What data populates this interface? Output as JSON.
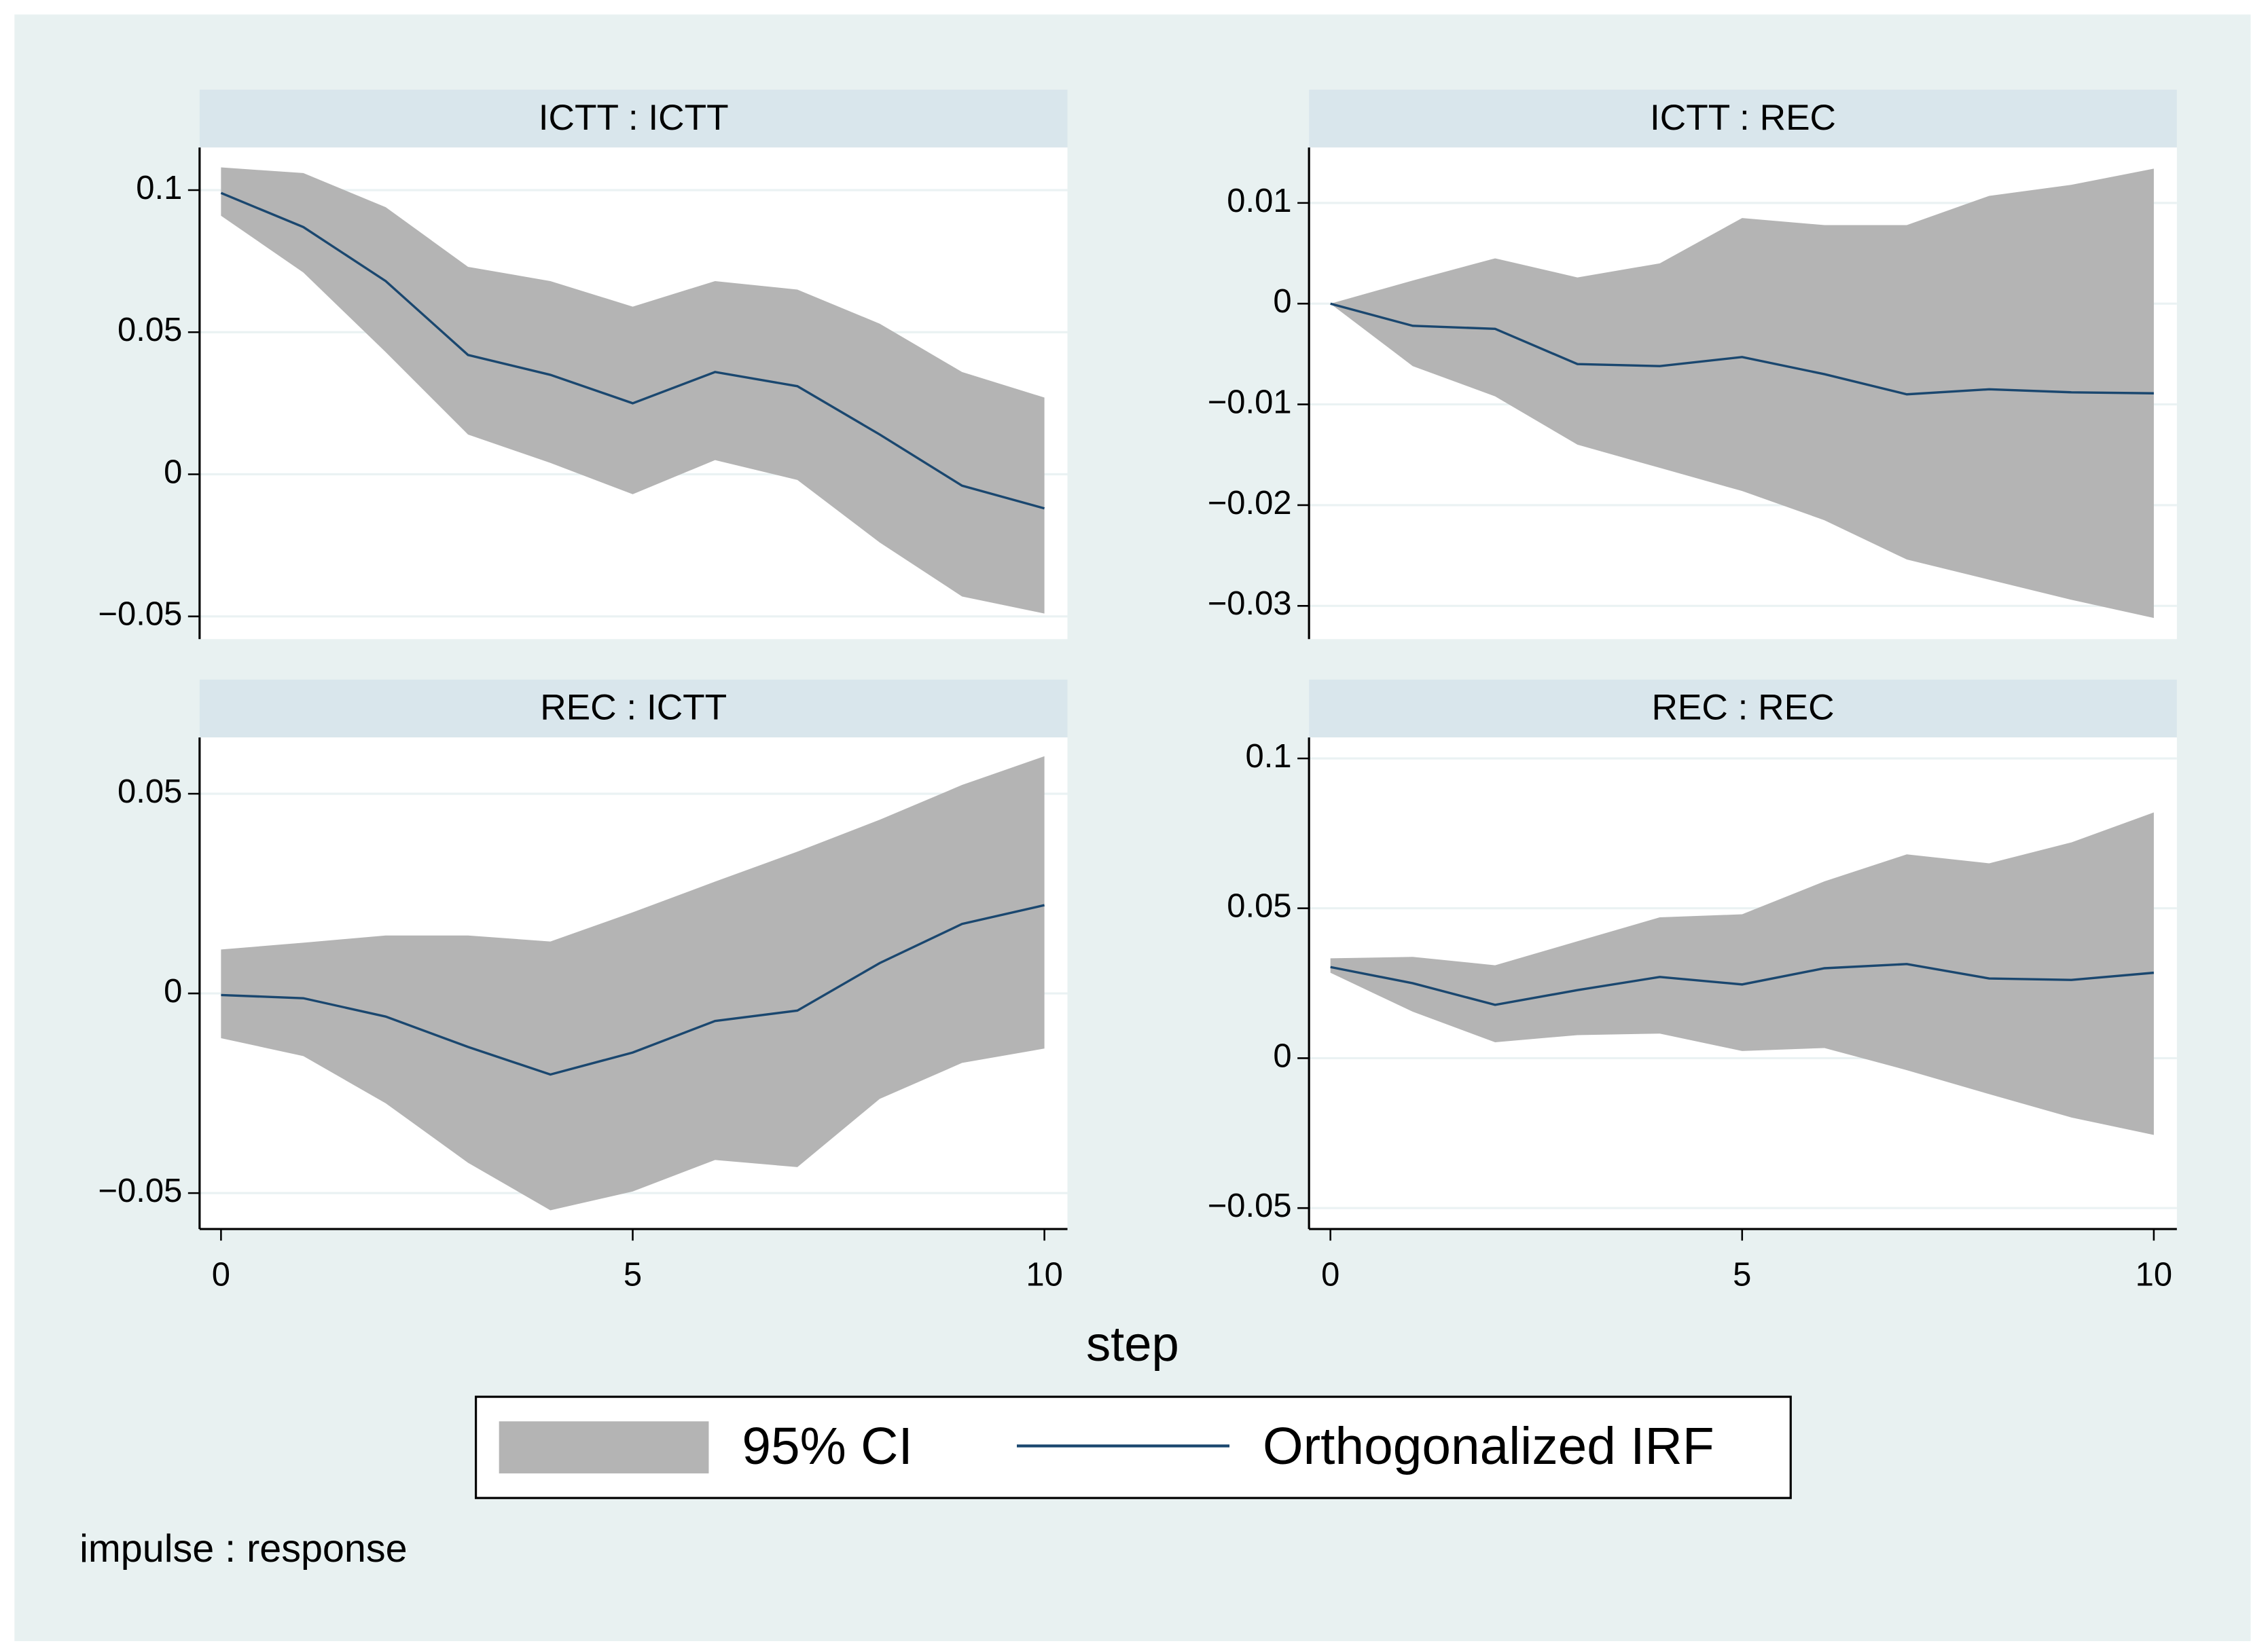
{
  "chart_data": [
    {
      "type": "line",
      "title": "ICTT : ICTT",
      "x": [
        0,
        1,
        2,
        3,
        4,
        5,
        6,
        7,
        8,
        9,
        10
      ],
      "xlim": [
        -0.26,
        10.28
      ],
      "ylim": [
        -0.058,
        0.115
      ],
      "yticks": [
        {
          "value": -0.05,
          "label": "−0.05"
        },
        0,
        0.05,
        0.1
      ],
      "grid": true,
      "series": [
        {
          "name": "95% CI",
          "type": "band",
          "color": "#b4b4b4",
          "lower": [
            0.091,
            0.071,
            0.043,
            0.014,
            0.004,
            -0.007,
            0.005,
            -0.002,
            -0.024,
            -0.043,
            -0.049
          ],
          "upper": [
            0.108,
            0.106,
            0.094,
            0.073,
            0.068,
            0.059,
            0.068,
            0.065,
            0.053,
            0.036,
            0.027
          ]
        },
        {
          "name": "Orthogonalized IRF",
          "color": "#1a476f",
          "values": [
            0.099,
            0.087,
            0.068,
            0.042,
            0.035,
            0.025,
            0.036,
            0.031,
            0.014,
            -0.004,
            -0.012
          ]
        }
      ]
    },
    {
      "type": "line",
      "title": "ICTT : REC",
      "x": [
        0,
        1,
        2,
        3,
        4,
        5,
        6,
        7,
        8,
        9,
        10
      ],
      "xlim": [
        -0.26,
        10.28
      ],
      "ylim": [
        -0.0333,
        0.0155
      ],
      "yticks": [
        {
          "value": -0.03,
          "label": "−0.03"
        },
        {
          "value": -0.02,
          "label": "−0.02"
        },
        {
          "value": -0.01,
          "label": "−0.01"
        },
        0,
        0.01
      ],
      "grid": true,
      "series": [
        {
          "name": "95% CI",
          "type": "band",
          "color": "#b4b4b4",
          "lower": [
            0,
            -0.0062,
            -0.0092,
            -0.014,
            -0.0163,
            -0.0186,
            -0.0215,
            -0.0254,
            -0.0274,
            -0.0294,
            -0.0312
          ],
          "upper": [
            0,
            0.0023,
            0.0045,
            0.0026,
            0.004,
            0.0085,
            0.0078,
            0.0078,
            0.0107,
            0.0118,
            0.0134
          ]
        },
        {
          "name": "Orthogonalized IRF",
          "color": "#1a476f",
          "values": [
            0,
            -0.0022,
            -0.0025,
            -0.006,
            -0.0062,
            -0.0053,
            -0.007,
            -0.009,
            -0.0085,
            -0.0088,
            -0.0089
          ]
        }
      ]
    },
    {
      "type": "line",
      "title": "REC : ICTT",
      "x": [
        0,
        1,
        2,
        3,
        4,
        5,
        6,
        7,
        8,
        9,
        10
      ],
      "xlim": [
        -0.26,
        10.28
      ],
      "xticks": [
        0,
        5,
        10
      ],
      "ylim": [
        -0.059,
        0.0641
      ],
      "yticks": [
        {
          "value": -0.05,
          "label": "−0.05"
        },
        0,
        0.05
      ],
      "grid": true,
      "series": [
        {
          "name": "95% CI",
          "type": "band",
          "color": "#b4b4b4",
          "lower": [
            -0.0112,
            -0.0157,
            -0.0275,
            -0.0424,
            -0.0543,
            -0.0496,
            -0.0417,
            -0.0435,
            -0.0264,
            -0.0174,
            -0.0138
          ],
          "upper": [
            0.011,
            0.0127,
            0.0145,
            0.0145,
            0.013,
            0.0203,
            0.028,
            0.0355,
            0.0435,
            0.0522,
            0.0594
          ]
        },
        {
          "name": "Orthogonalized IRF",
          "color": "#1a476f",
          "values": [
            -0.0004,
            -0.0012,
            -0.0058,
            -0.0134,
            -0.0203,
            -0.0148,
            -0.0069,
            -0.0043,
            0.0076,
            0.0174,
            0.0221
          ]
        }
      ]
    },
    {
      "type": "line",
      "title": "REC : REC",
      "x": [
        0,
        1,
        2,
        3,
        4,
        5,
        6,
        7,
        8,
        9,
        10
      ],
      "xlim": [
        -0.26,
        10.28
      ],
      "xticks": [
        0,
        5,
        10
      ],
      "ylim": [
        -0.057,
        0.107
      ],
      "yticks": [
        {
          "value": -0.05,
          "label": "−0.05"
        },
        0,
        0.05,
        0.1
      ],
      "grid": true,
      "series": [
        {
          "name": "95% CI",
          "type": "band",
          "color": "#b4b4b4",
          "lower": [
            0.0285,
            0.0155,
            0.0053,
            0.0077,
            0.0082,
            0.0024,
            0.0034,
            -0.004,
            -0.012,
            -0.0198,
            -0.0256
          ],
          "upper": [
            0.0333,
            0.0338,
            0.031,
            0.039,
            0.047,
            0.048,
            0.059,
            0.068,
            0.065,
            0.072,
            0.082
          ]
        },
        {
          "name": "Orthogonalized IRF",
          "color": "#1a476f",
          "values": [
            0.0304,
            0.025,
            0.0178,
            0.0227,
            0.0271,
            0.0246,
            0.03,
            0.0314,
            0.0266,
            0.0261,
            0.0285
          ]
        }
      ]
    }
  ],
  "xlabel": "step",
  "note": "impulse : response"
}
